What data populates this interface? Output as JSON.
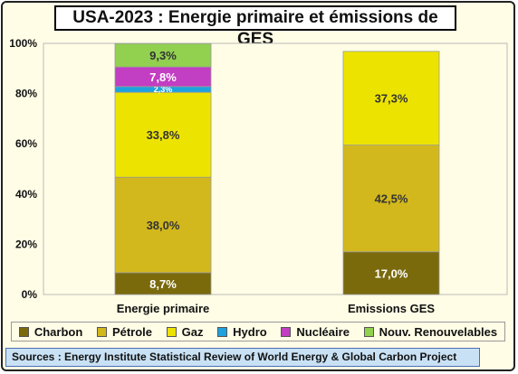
{
  "title": "USA-2023 : Energie primaire et émissions de GES",
  "source": "Sources : Energy Institute Statistical Review of World Energy & Global Carbon Project",
  "chart_data": {
    "type": "bar",
    "stacked": true,
    "categories": [
      "Energie primaire",
      "Emissions GES"
    ],
    "ylim": [
      0,
      100
    ],
    "yticks": [
      0,
      20,
      40,
      60,
      80,
      100
    ],
    "ytick_labels": [
      "0%",
      "20%",
      "40%",
      "60%",
      "80%",
      "100%"
    ],
    "grid": false,
    "legend_position": "bottom",
    "series": [
      {
        "name": "Charbon",
        "color": "#7a6a0c",
        "values": [
          8.7,
          17.0
        ],
        "labels": [
          "8,7%",
          "17,0%"
        ],
        "label_color": "#ffffff"
      },
      {
        "name": "Pétrole",
        "color": "#d2b81c",
        "values": [
          38.0,
          42.5
        ],
        "labels": [
          "38,0%",
          "42,5%"
        ],
        "label_color": "#333333"
      },
      {
        "name": "Gaz",
        "color": "#ece400",
        "values": [
          33.8,
          37.3
        ],
        "labels": [
          "33,8%",
          "37,3%"
        ],
        "label_color": "#333333"
      },
      {
        "name": "Hydro",
        "color": "#1ea2de",
        "values": [
          2.3,
          0
        ],
        "labels": [
          "2,3%",
          ""
        ],
        "label_color": "#ffffff"
      },
      {
        "name": "Nucléaire",
        "color": "#c23ec2",
        "values": [
          7.8,
          0
        ],
        "labels": [
          "7,8%",
          ""
        ],
        "label_color": "#ffffff"
      },
      {
        "name": "Nouv. Renouvelables",
        "color": "#92d050",
        "values": [
          9.3,
          0
        ],
        "labels": [
          "9,3%",
          ""
        ],
        "label_color": "#333333"
      }
    ]
  }
}
